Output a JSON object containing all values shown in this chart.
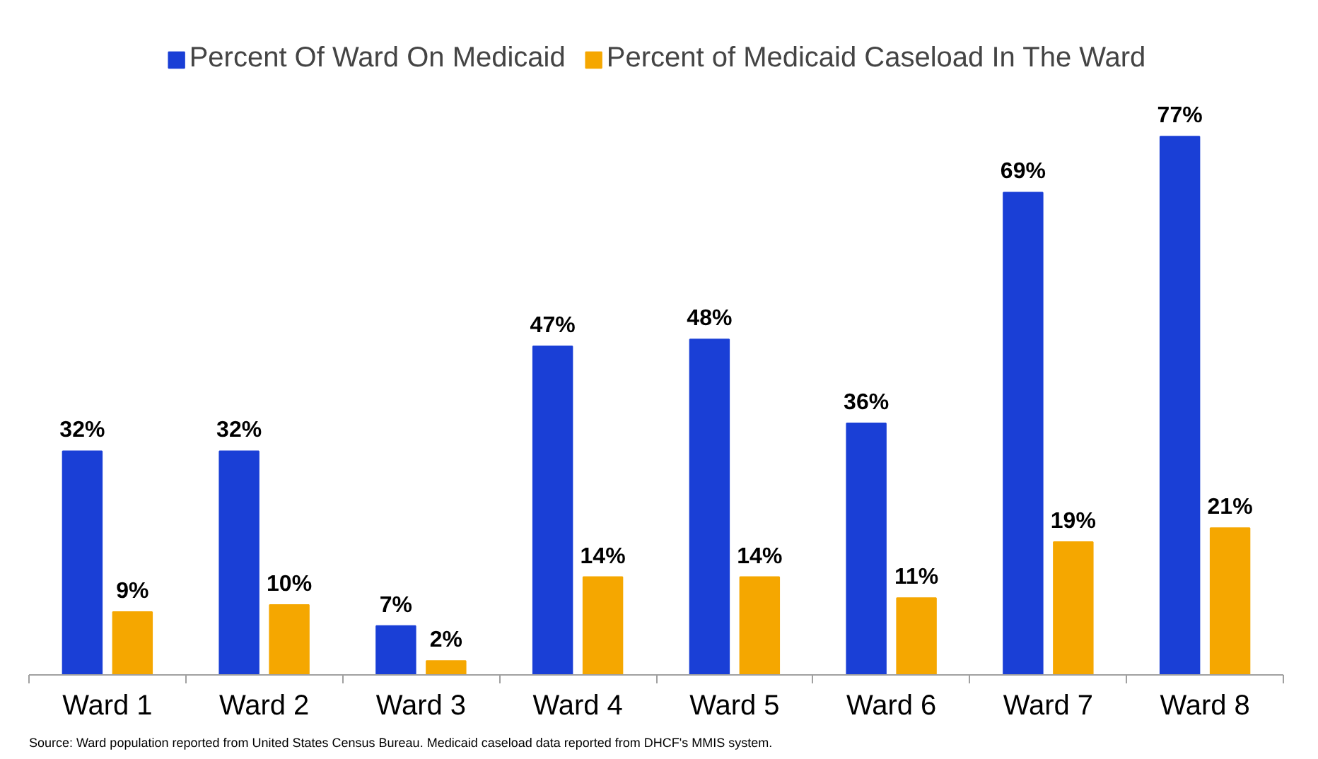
{
  "chart_data": {
    "type": "bar",
    "categories": [
      "Ward 1",
      "Ward 2",
      "Ward 3",
      "Ward 4",
      "Ward 5",
      "Ward 6",
      "Ward 7",
      "Ward 8"
    ],
    "series": [
      {
        "name": "Percent Of Ward On Medicaid",
        "color": "#1a3fd6",
        "values": [
          32,
          32,
          7,
          47,
          48,
          36,
          69,
          77
        ],
        "value_labels": [
          "32%",
          "32%",
          "7%",
          "47%",
          "48%",
          "36%",
          "69%",
          "77%"
        ]
      },
      {
        "name": "Percent of Medicaid Caseload In The Ward",
        "color": "#f5a700",
        "values": [
          9,
          10,
          2,
          14,
          14,
          11,
          19,
          21
        ],
        "value_labels": [
          "9%",
          "10%",
          "2%",
          "14%",
          "14%",
          "11%",
          "19%",
          "21%"
        ]
      }
    ],
    "legend": "top",
    "annotations": [
      "Source: Ward population reported from United States Census Bureau.  Medicaid caseload data reported from DHCF's MMIS system."
    ]
  }
}
